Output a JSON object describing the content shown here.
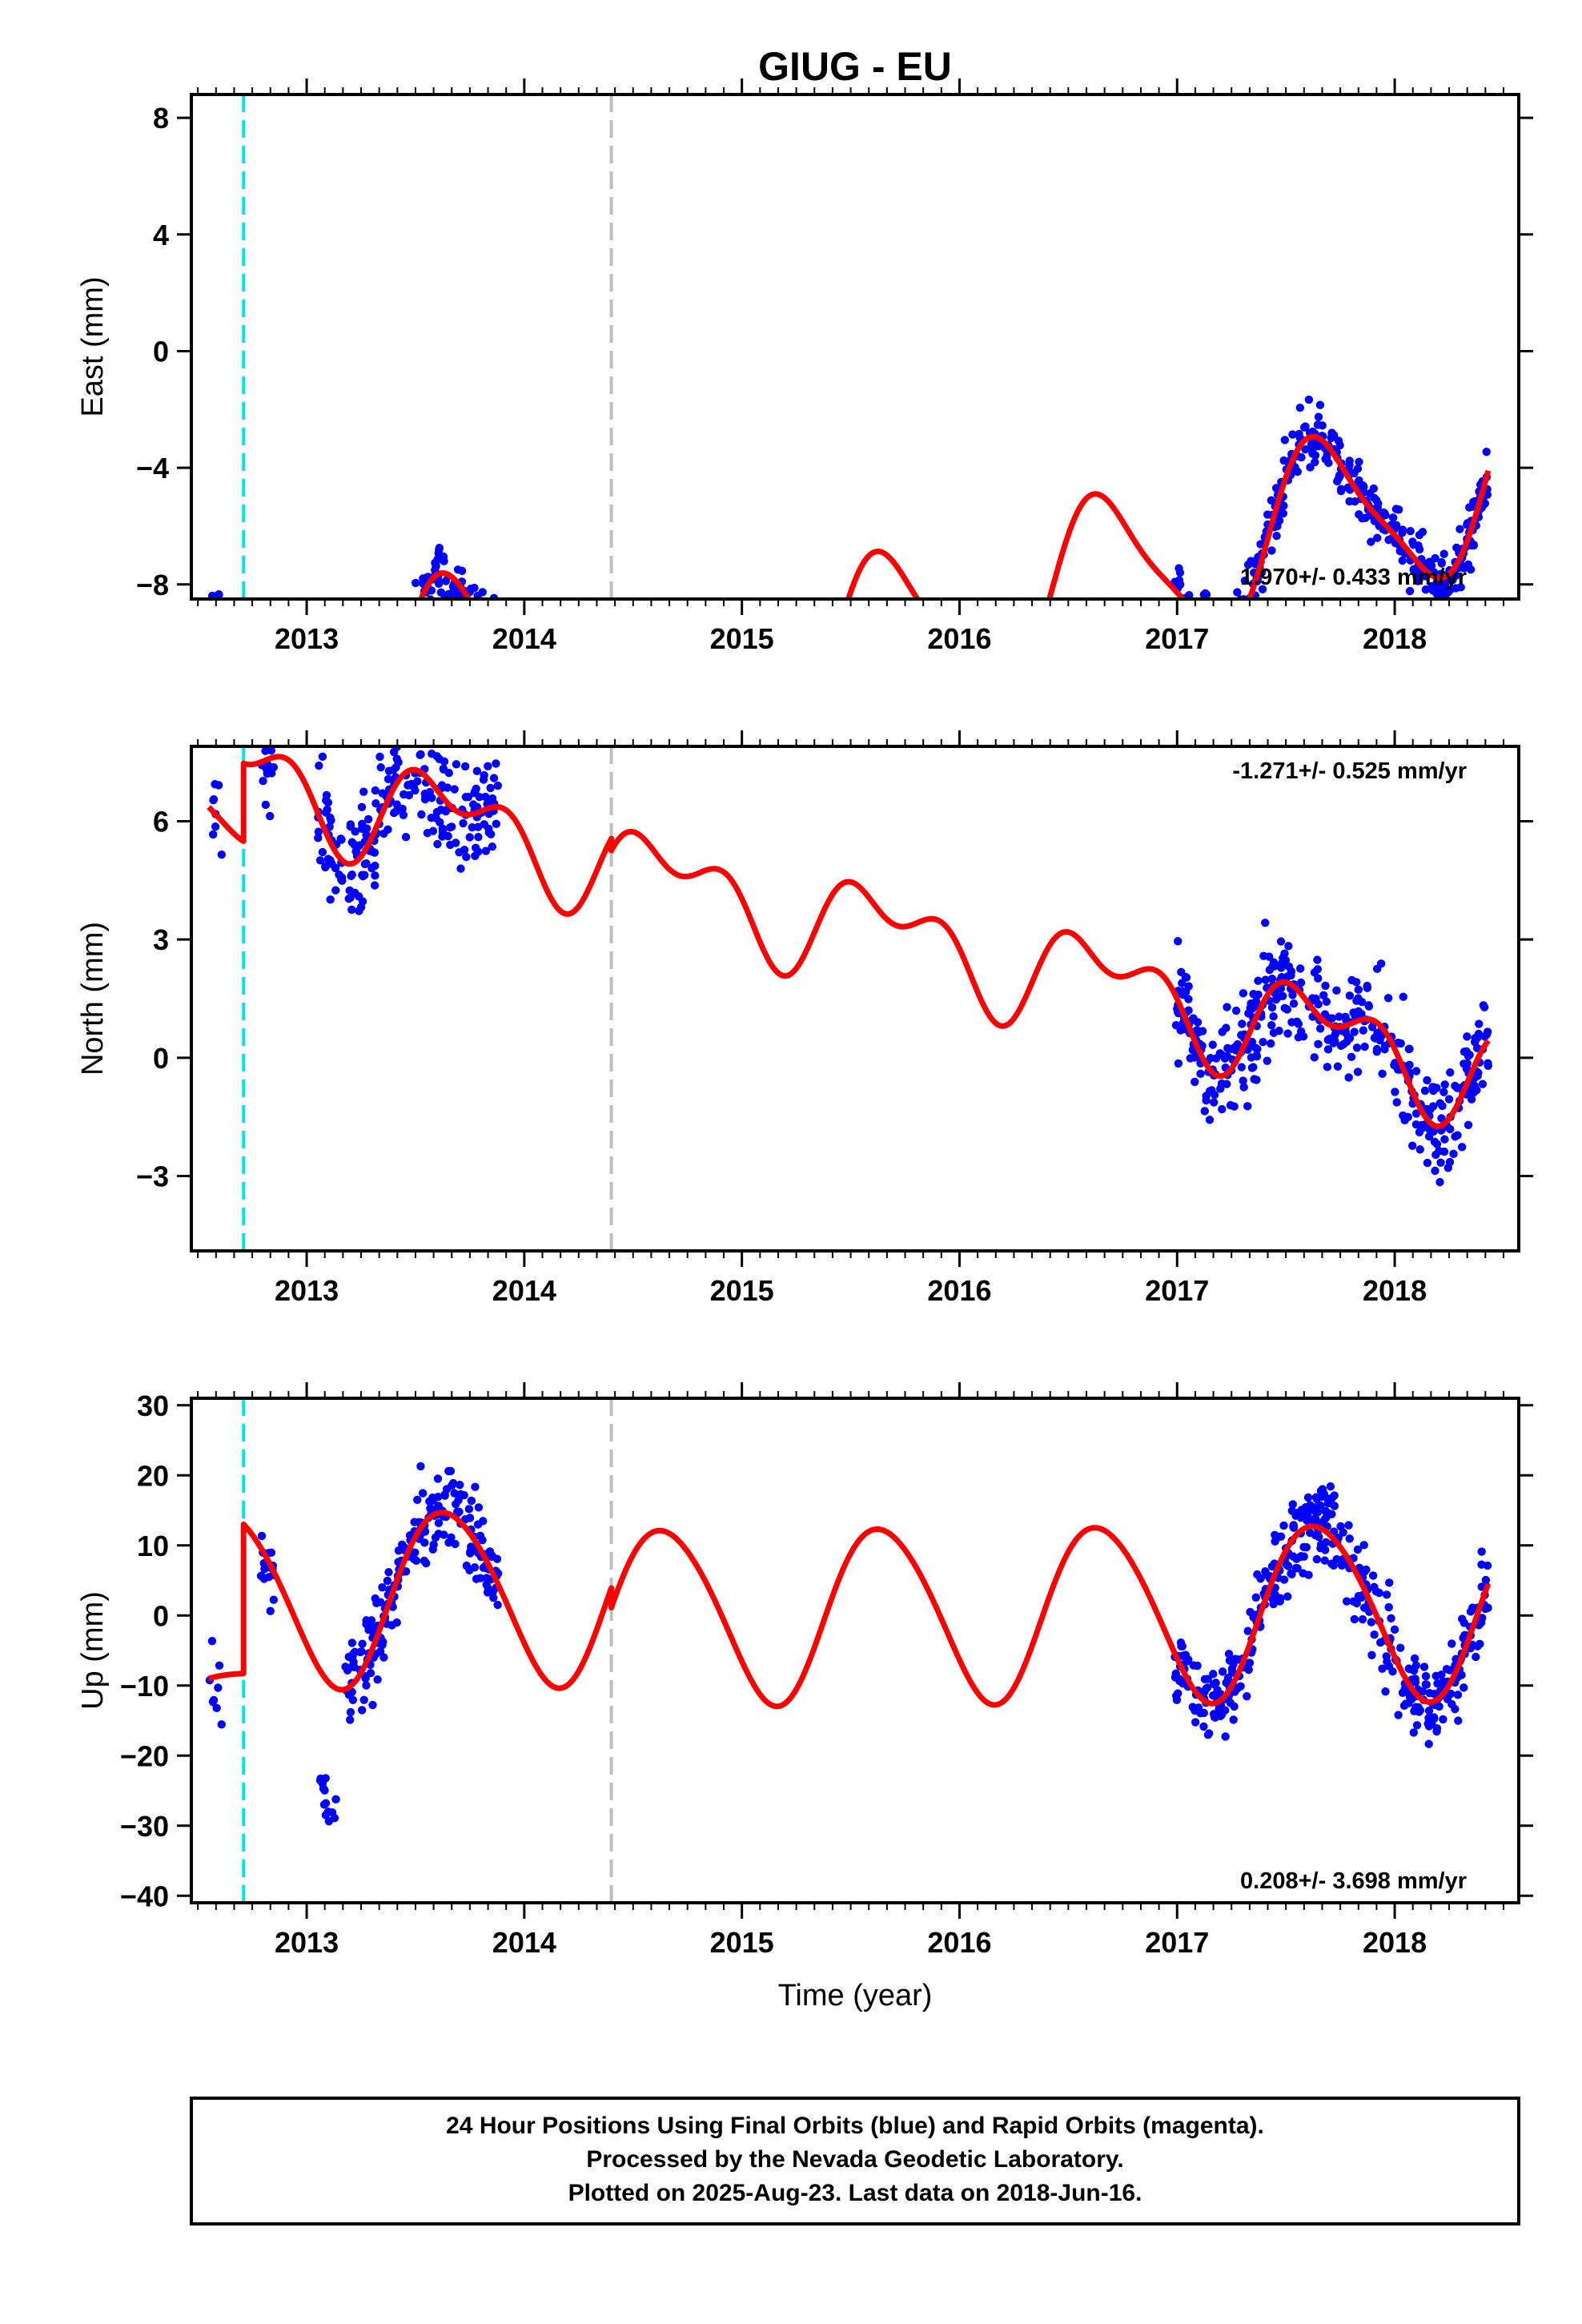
{
  "title": "GIUG - EU",
  "xlabel": "Time (year)",
  "caption": {
    "lines": [
      "24 Hour Positions Using Final Orbits (blue) and Rapid Orbits (magenta).",
      "Processed by the Nevada Geodetic Laboratory.",
      "Plotted on 2025-Aug-23. Last data on 2018-Jun-16."
    ]
  },
  "colors": {
    "final_orbits": "#0000ff",
    "model_fit": "#ff0000",
    "equipment_change": "#00e5ee",
    "data_gap_marker": "#bebebe"
  },
  "chart_data": [
    {
      "type": "scatter",
      "name": "east",
      "ylabel": "East (mm)",
      "xlim": [
        2012.47,
        2018.57
      ],
      "ylim": [
        -8.5,
        8.8
      ],
      "xticks": [
        2013,
        2014,
        2015,
        2016,
        2017,
        2018
      ],
      "yticks": [
        -8,
        -4,
        0,
        4,
        8
      ],
      "rate_text": "1.970+/- 0.433 mm/yr",
      "rate_position": "bottom-right",
      "vertical_lines": [
        {
          "x": 2012.71,
          "style": "dashed",
          "color": "#00e5ee"
        },
        {
          "x": 2014.4,
          "style": "dashed",
          "color": "#bebebe"
        }
      ],
      "model": {
        "rate": 1.97,
        "segments": [
          {
            "t0": 2012.55,
            "t1": 2012.71,
            "c": -4.0,
            "amp1": 1.0,
            "ph1": 2.0,
            "amp2": 0.4,
            "ph2": 1.0
          },
          {
            "t0": 2012.71,
            "t1": 2014.4,
            "c": -8.0,
            "amp1": 2.8,
            "ph1": 3.7,
            "amp2": 0.6,
            "ph2": 0.9
          },
          {
            "t0": 2014.4,
            "t1": 2018.43,
            "c": -11.2,
            "amp1": 2.8,
            "ph1": 3.7,
            "amp2": 0.6,
            "ph2": 0.9
          }
        ]
      },
      "scatter_groups": [
        {
          "t0": 2012.55,
          "t1": 2012.62,
          "n": 8,
          "sd": 0.8
        },
        {
          "t0": 2012.78,
          "t1": 2012.85,
          "n": 14,
          "sd": 0.8
        },
        {
          "t0": 2013.05,
          "t1": 2013.88,
          "n": 230,
          "sd": 0.85
        },
        {
          "t0": 2016.99,
          "t1": 2018.43,
          "n": 420,
          "sd": 0.75
        }
      ]
    },
    {
      "type": "scatter",
      "name": "north",
      "ylabel": "North (mm)",
      "xlim": [
        2012.47,
        2018.57
      ],
      "ylim": [
        -4.9,
        7.9
      ],
      "xticks": [
        2013,
        2014,
        2015,
        2016,
        2017,
        2018
      ],
      "yticks": [
        -3,
        0,
        3,
        6
      ],
      "rate_text": "-1.271+/- 0.525 mm/yr",
      "rate_position": "top-right",
      "vertical_lines": [
        {
          "x": 2012.71,
          "style": "dashed",
          "color": "#00e5ee"
        },
        {
          "x": 2014.4,
          "style": "dashed",
          "color": "#bebebe"
        }
      ],
      "model": {
        "rate": -1.271,
        "segments": [
          {
            "t0": 2012.55,
            "t1": 2012.71,
            "c": 3.6,
            "amp1": 0.9,
            "ph1": 0.5,
            "amp2": 0.3,
            "ph2": 1.0
          },
          {
            "t0": 2012.71,
            "t1": 2014.4,
            "c": 4.3,
            "amp1": 1.0,
            "ph1": 3.7,
            "amp2": 0.7,
            "ph2": 2.2
          },
          {
            "t0": 2014.4,
            "t1": 2018.43,
            "c": 4.0,
            "amp1": 1.0,
            "ph1": 3.7,
            "amp2": 0.7,
            "ph2": 2.2
          }
        ]
      },
      "scatter_groups": [
        {
          "t0": 2012.55,
          "t1": 2012.62,
          "n": 8,
          "sd": 0.9
        },
        {
          "t0": 2012.78,
          "t1": 2012.85,
          "n": 16,
          "sd": 0.9
        },
        {
          "t0": 2013.05,
          "t1": 2013.88,
          "n": 230,
          "sd": 1.0
        },
        {
          "t0": 2016.99,
          "t1": 2018.43,
          "n": 420,
          "sd": 0.95
        }
      ]
    },
    {
      "type": "scatter",
      "name": "up",
      "ylabel": "Up (mm)",
      "xlim": [
        2012.47,
        2018.57
      ],
      "ylim": [
        -41,
        31
      ],
      "xticks": [
        2013,
        2014,
        2015,
        2016,
        2017,
        2018
      ],
      "yticks": [
        -40,
        -30,
        -20,
        -10,
        0,
        10,
        20,
        30
      ],
      "rate_text": "0.208+/- 3.698 mm/yr",
      "rate_position": "bottom-right",
      "vertical_lines": [
        {
          "x": 2012.71,
          "style": "dashed",
          "color": "#00e5ee"
        },
        {
          "x": 2014.4,
          "style": "dashed",
          "color": "#bebebe"
        }
      ],
      "model": {
        "rate": 0.208,
        "segments": [
          {
            "t0": 2012.55,
            "t1": 2012.71,
            "c": -8.5,
            "amp1": 1.5,
            "ph1": 2.5,
            "amp2": 0.5,
            "ph2": 1.0
          },
          {
            "t0": 2012.71,
            "t1": 2014.4,
            "c": 3.0,
            "amp1": 12.5,
            "ph1": 3.8,
            "amp2": 1.0,
            "ph2": 2.0
          },
          {
            "t0": 2014.4,
            "t1": 2018.43,
            "c": 0.2,
            "amp1": 12.5,
            "ph1": 3.8,
            "amp2": 1.0,
            "ph2": 2.0
          }
        ]
      },
      "scatter_groups": [
        {
          "t0": 2012.55,
          "t1": 2012.62,
          "n": 8,
          "sd": 4.5
        },
        {
          "t0": 2012.78,
          "t1": 2012.85,
          "n": 16,
          "sd": 4.0
        },
        {
          "t0": 2013.05,
          "t1": 2013.15,
          "n": 14,
          "sd": 3.5,
          "offset": -25
        },
        {
          "t0": 2013.17,
          "t1": 2013.88,
          "n": 210,
          "sd": 4.5
        },
        {
          "t0": 2016.99,
          "t1": 2018.43,
          "n": 420,
          "sd": 4.5
        }
      ]
    }
  ]
}
